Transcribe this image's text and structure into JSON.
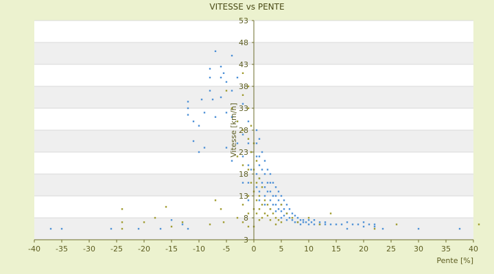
{
  "chart_data": {
    "type": "scatter",
    "title": "VITESSE vs PENTE",
    "xlabel": "Pente [%]",
    "ylabel": "Vitesse [km/h]",
    "xlim": [
      -40,
      40
    ],
    "ylim": [
      3,
      53
    ],
    "x_ticks": [
      -40,
      -35,
      -30,
      -25,
      -20,
      -15,
      -10,
      -5,
      0,
      5,
      10,
      15,
      20,
      25,
      30,
      35,
      40
    ],
    "y_ticks": [
      3,
      8,
      13,
      18,
      23,
      28,
      33,
      38,
      43,
      48,
      53
    ],
    "grid": true,
    "legend": "none",
    "colors": {
      "series_a": "#4b8fd6",
      "series_b": "#9e9a2c",
      "band": "#efefef",
      "plot_bg": "#ffffff",
      "axis": "#6b6b2a"
    },
    "series": [
      {
        "color": "#4b8fd6",
        "points": [
          [
            -37,
            5.5
          ],
          [
            -35,
            5.5
          ],
          [
            -26,
            5.5
          ],
          [
            -21,
            5.5
          ],
          [
            -17,
            5.5
          ],
          [
            -13,
            6.5
          ],
          [
            -15,
            7.5
          ],
          [
            -12,
            5.5
          ],
          [
            -12,
            31.5
          ],
          [
            -12,
            33
          ],
          [
            -12,
            34.5
          ],
          [
            -11,
            30
          ],
          [
            -11,
            25.5
          ],
          [
            -10,
            29
          ],
          [
            -10,
            23
          ],
          [
            -9.5,
            35
          ],
          [
            -9,
            32
          ],
          [
            -9,
            24
          ],
          [
            -8,
            40
          ],
          [
            -8,
            42
          ],
          [
            -8,
            37
          ],
          [
            -7.5,
            35
          ],
          [
            -7,
            46
          ],
          [
            -7,
            31
          ],
          [
            -6,
            42.5
          ],
          [
            -6,
            40
          ],
          [
            -6,
            35.5
          ],
          [
            -5.5,
            41
          ],
          [
            -5,
            39
          ],
          [
            -5,
            32
          ],
          [
            -5,
            24
          ],
          [
            -4,
            45
          ],
          [
            -4,
            37
          ],
          [
            -4,
            31
          ],
          [
            -4,
            21
          ],
          [
            -3,
            40
          ],
          [
            -3,
            30
          ],
          [
            -3,
            25
          ],
          [
            -2,
            34
          ],
          [
            -2,
            27
          ],
          [
            -2,
            22
          ],
          [
            -2,
            16
          ],
          [
            -1,
            30
          ],
          [
            -1,
            25
          ],
          [
            -1,
            20
          ],
          [
            -1,
            16
          ],
          [
            -1,
            12
          ],
          [
            -0.5,
            23
          ],
          [
            -0.5,
            19
          ],
          [
            0.5,
            28
          ],
          [
            0.5,
            25
          ],
          [
            0.5,
            22
          ],
          [
            0.5,
            18
          ],
          [
            0.5,
            15
          ],
          [
            1,
            26
          ],
          [
            1,
            22
          ],
          [
            1,
            20
          ],
          [
            1,
            17
          ],
          [
            1,
            14
          ],
          [
            1,
            12
          ],
          [
            1.5,
            23
          ],
          [
            1.5,
            19
          ],
          [
            1.5,
            16
          ],
          [
            2,
            21
          ],
          [
            2,
            18
          ],
          [
            2,
            15
          ],
          [
            2,
            13
          ],
          [
            2,
            11
          ],
          [
            2.5,
            19
          ],
          [
            2.5,
            16
          ],
          [
            2.5,
            14
          ],
          [
            3,
            18
          ],
          [
            3,
            16
          ],
          [
            3,
            14
          ],
          [
            3,
            12
          ],
          [
            3,
            10
          ],
          [
            3.5,
            16
          ],
          [
            3.5,
            13
          ],
          [
            3.5,
            11
          ],
          [
            4,
            15
          ],
          [
            4,
            13
          ],
          [
            4,
            11
          ],
          [
            4,
            9.5
          ],
          [
            4.5,
            14
          ],
          [
            4.5,
            12
          ],
          [
            4.5,
            10
          ],
          [
            5,
            13
          ],
          [
            5,
            11
          ],
          [
            5,
            9.5
          ],
          [
            5,
            8
          ],
          [
            5.5,
            12
          ],
          [
            5.5,
            10
          ],
          [
            5.5,
            8.5
          ],
          [
            6,
            11
          ],
          [
            6,
            9
          ],
          [
            6,
            7.5
          ],
          [
            6.5,
            10
          ],
          [
            6.5,
            8
          ],
          [
            7,
            9
          ],
          [
            7,
            7.5
          ],
          [
            7.5,
            8.5
          ],
          [
            7.5,
            7
          ],
          [
            8,
            8
          ],
          [
            8,
            7
          ],
          [
            8.5,
            7.5
          ],
          [
            8.5,
            6.5
          ],
          [
            9,
            7.5
          ],
          [
            9,
            7
          ],
          [
            9.5,
            7
          ],
          [
            10,
            7.5
          ],
          [
            10,
            6.5
          ],
          [
            10.5,
            7
          ],
          [
            11,
            6.5
          ],
          [
            11,
            7.5
          ],
          [
            12,
            7
          ],
          [
            12,
            6.5
          ],
          [
            13,
            6.5
          ],
          [
            13,
            7
          ],
          [
            14,
            6.5
          ],
          [
            15,
            6.5
          ],
          [
            16,
            6.5
          ],
          [
            17,
            7
          ],
          [
            17,
            5.5
          ],
          [
            18,
            6.5
          ],
          [
            19,
            6.5
          ],
          [
            20,
            7
          ],
          [
            20,
            6
          ],
          [
            21,
            6.5
          ],
          [
            22,
            6.5
          ],
          [
            22,
            6
          ],
          [
            23.5,
            5.5
          ],
          [
            30,
            5.5
          ],
          [
            37.5,
            5.5
          ]
        ]
      },
      {
        "color": "#9e9a2c",
        "points": [
          [
            -24,
            10
          ],
          [
            -24,
            7
          ],
          [
            -24,
            5.5
          ],
          [
            -20,
            7
          ],
          [
            -18,
            8
          ],
          [
            -16,
            10.5
          ],
          [
            -15,
            6
          ],
          [
            -13,
            7
          ],
          [
            -8,
            6.5
          ],
          [
            -7,
            12
          ],
          [
            -6,
            10
          ],
          [
            -5.5,
            7
          ],
          [
            -5,
            37
          ],
          [
            -4,
            33
          ],
          [
            -3,
            30
          ],
          [
            -3,
            22
          ],
          [
            -3,
            8
          ],
          [
            -2,
            41
          ],
          [
            -2,
            36
          ],
          [
            -2,
            28
          ],
          [
            -2,
            20
          ],
          [
            -2,
            11
          ],
          [
            -2,
            7
          ],
          [
            -1,
            38
          ],
          [
            -1,
            33
          ],
          [
            -1,
            26
          ],
          [
            -1,
            19
          ],
          [
            -1,
            13
          ],
          [
            -1,
            9
          ],
          [
            -1,
            6
          ],
          [
            -0.5,
            29
          ],
          [
            -0.5,
            23
          ],
          [
            -0.5,
            16
          ],
          [
            0,
            25
          ],
          [
            0,
            19
          ],
          [
            0,
            14
          ],
          [
            0,
            10
          ],
          [
            0,
            6
          ],
          [
            0.5,
            21
          ],
          [
            0.5,
            16
          ],
          [
            0.5,
            12
          ],
          [
            0.5,
            9
          ],
          [
            1,
            17
          ],
          [
            1,
            13
          ],
          [
            1,
            10
          ],
          [
            1,
            7.5
          ],
          [
            1.5,
            15
          ],
          [
            1.5,
            11
          ],
          [
            1.5,
            8
          ],
          [
            2,
            12
          ],
          [
            2,
            9
          ],
          [
            2.5,
            11
          ],
          [
            2.5,
            8.5
          ],
          [
            3,
            10
          ],
          [
            3,
            7.5
          ],
          [
            3.5,
            9
          ],
          [
            4,
            8
          ],
          [
            4,
            6.5
          ],
          [
            4.5,
            7.5
          ],
          [
            5,
            11
          ],
          [
            5,
            7
          ],
          [
            6,
            9
          ],
          [
            7,
            8
          ],
          [
            8,
            7
          ],
          [
            10,
            8
          ],
          [
            12,
            6.5
          ],
          [
            14,
            9
          ],
          [
            22,
            5.5
          ],
          [
            26,
            6.5
          ],
          [
            41,
            6.5
          ]
        ]
      }
    ]
  }
}
